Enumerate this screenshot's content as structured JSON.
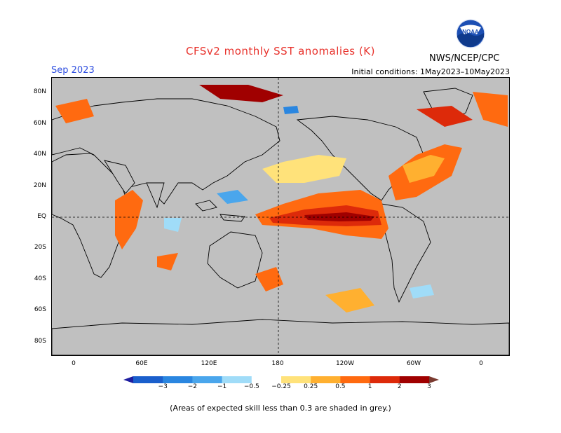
{
  "title": "CFSv2 monthly SST anomalies (K)",
  "valid_month": "Sep 2023",
  "initial_conditions": "Initial conditions: 1May2023–10May2023",
  "agency": "NWS/NCEP/CPC",
  "logo_text": "NOAA",
  "latitude_labels": [
    "80N",
    "60N",
    "40N",
    "20N",
    "EQ",
    "20S",
    "40S",
    "60S",
    "80S"
  ],
  "longitude_labels": [
    "0",
    "60E",
    "120E",
    "180",
    "120W",
    "60W",
    "0"
  ],
  "colorbar": {
    "labels": [
      "−3",
      "−2",
      "−1",
      "−0.5",
      "−0.25",
      "0.25",
      "0.5",
      "1",
      "2",
      "3"
    ],
    "colors": [
      "#1e1ea0",
      "#1a5fcc",
      "#2a86e0",
      "#4aa6ec",
      "#a0dcf8",
      "#ffffff",
      "#ffe27a",
      "#ffb030",
      "#ff6a10",
      "#dd2a0a",
      "#a00000",
      "#7a3a30"
    ]
  },
  "footnote": "(Areas of expected skill less than 0.3 are shaded in grey.)",
  "colors": {
    "title": "#e8322c",
    "month": "#2f4fe0",
    "skill_mask": "#c0c0c0"
  }
}
